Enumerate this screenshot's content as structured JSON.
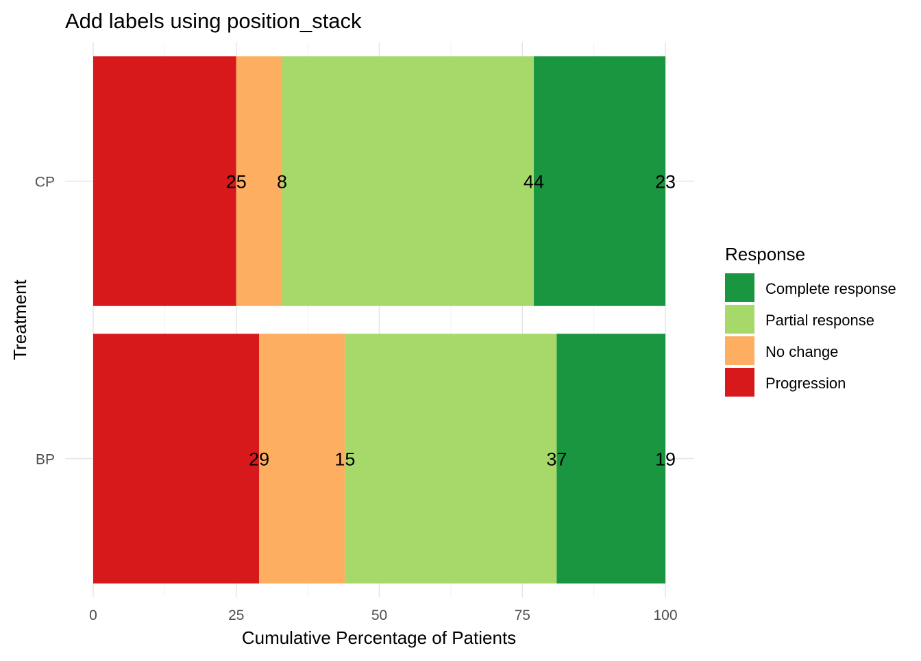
{
  "chart_data": {
    "type": "bar",
    "orientation": "horizontal",
    "stacked": true,
    "title": "Add labels using position_stack",
    "xlabel": "Cumulative Percentage of Patients",
    "ylabel": "Treatment",
    "xlim": [
      0,
      100
    ],
    "xticks": [
      0,
      25,
      50,
      75,
      100
    ],
    "categories": [
      "BP",
      "CP"
    ],
    "grid": true,
    "legend": {
      "title": "Response",
      "placement": "right"
    },
    "series": [
      {
        "name": "Progression",
        "values": [
          29,
          25
        ],
        "color": "#d7191c"
      },
      {
        "name": "No change",
        "values": [
          15,
          8
        ],
        "color": "#fdae61"
      },
      {
        "name": "Partial response",
        "values": [
          37,
          44
        ],
        "color": "#a6d96a"
      },
      {
        "name": "Complete response",
        "values": [
          19,
          23
        ],
        "color": "#1a9641"
      }
    ],
    "legend_order": [
      "Complete response",
      "Partial response",
      "No change",
      "Progression"
    ]
  }
}
